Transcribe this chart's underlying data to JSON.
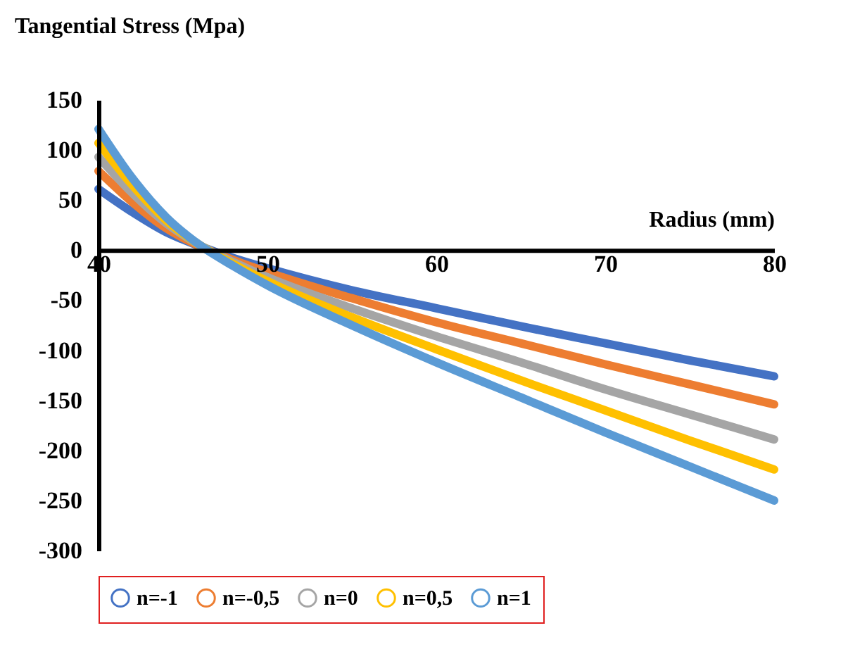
{
  "chart_data": {
    "type": "line",
    "ylabel": "Tangential Stress (Mpa)",
    "xlabel": "Radius (mm)",
    "x": [
      40,
      42,
      44,
      46,
      48,
      50,
      55,
      60,
      65,
      70,
      75,
      80
    ],
    "xlim": [
      40,
      80
    ],
    "xticks": [
      40,
      50,
      60,
      70,
      80
    ],
    "ylim": [
      -300,
      150
    ],
    "yticks": [
      -300,
      -250,
      -200,
      -150,
      -100,
      -50,
      0,
      50,
      100,
      150
    ],
    "grid": false,
    "legend": "bottom",
    "marker": "none",
    "line_style": "solid",
    "series": [
      {
        "name": "n=-1",
        "color": "#4472c4",
        "values": [
          61,
          38,
          18,
          4,
          -8,
          -18,
          -40,
          -58,
          -76,
          -93,
          -110,
          -126
        ]
      },
      {
        "name": "n=-0,5",
        "color": "#ed7d31",
        "values": [
          79,
          48,
          22,
          4,
          -10,
          -22,
          -48,
          -72,
          -93,
          -114,
          -134,
          -154
        ]
      },
      {
        "name": "n=0",
        "color": "#a5a5a5",
        "values": [
          93,
          57,
          27,
          5,
          -12,
          -27,
          -58,
          -86,
          -112,
          -139,
          -164,
          -189
        ]
      },
      {
        "name": "n=0,5",
        "color": "#ffc000",
        "values": [
          107,
          65,
          30,
          5,
          -14,
          -31,
          -67,
          -99,
          -130,
          -160,
          -190,
          -219
        ]
      },
      {
        "name": "n=1",
        "color": "#5b9bd5",
        "values": [
          121,
          72,
          33,
          5,
          -16,
          -35,
          -75,
          -112,
          -147,
          -182,
          -216,
          -250
        ]
      }
    ]
  }
}
